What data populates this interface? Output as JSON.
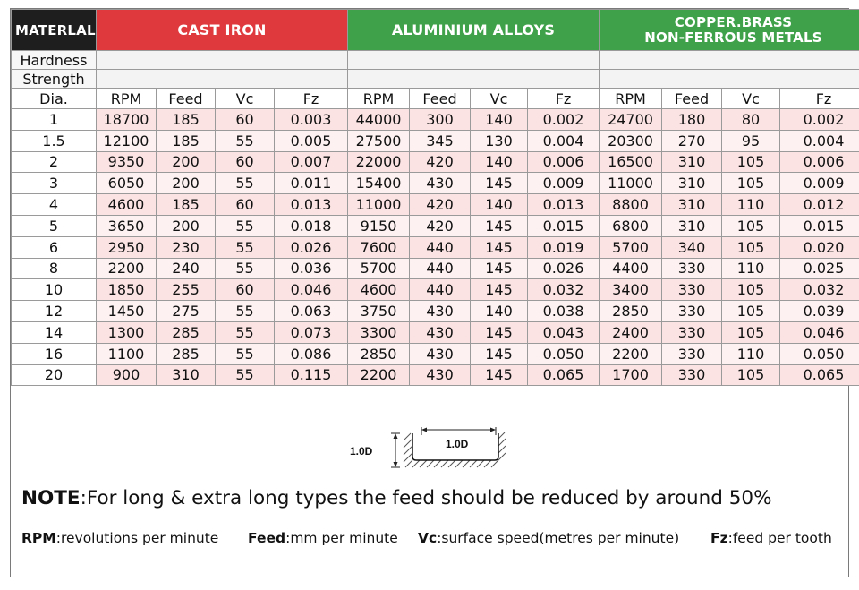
{
  "header": {
    "material_label": "MATERLAL",
    "groups": [
      {
        "lines": [
          "CAST IRON"
        ]
      },
      {
        "lines": [
          "ALUMINIUM ALLOYS"
        ]
      },
      {
        "lines": [
          "COPPER.BRASS",
          "NON-FERROUS METALS"
        ]
      }
    ]
  },
  "properties": {
    "hardness_label": "Hardness",
    "strength_label": "Strength"
  },
  "columns": {
    "dia": "Dia.",
    "rpm": "RPM",
    "feed": "Feed",
    "vc": "Vc",
    "fz": "Fz"
  },
  "rows": [
    {
      "dia": "1",
      "g": [
        [
          "18700",
          "185",
          "60",
          "0.003"
        ],
        [
          "44000",
          "300",
          "140",
          "0.002"
        ],
        [
          "24700",
          "180",
          "80",
          "0.002"
        ]
      ]
    },
    {
      "dia": "1.5",
      "g": [
        [
          "12100",
          "185",
          "55",
          "0.005"
        ],
        [
          "27500",
          "345",
          "130",
          "0.004"
        ],
        [
          "20300",
          "270",
          "95",
          "0.004"
        ]
      ]
    },
    {
      "dia": "2",
      "g": [
        [
          "9350",
          "200",
          "60",
          "0.007"
        ],
        [
          "22000",
          "420",
          "140",
          "0.006"
        ],
        [
          "16500",
          "310",
          "105",
          "0.006"
        ]
      ]
    },
    {
      "dia": "3",
      "g": [
        [
          "6050",
          "200",
          "55",
          "0.011"
        ],
        [
          "15400",
          "430",
          "145",
          "0.009"
        ],
        [
          "11000",
          "310",
          "105",
          "0.009"
        ]
      ]
    },
    {
      "dia": "4",
      "g": [
        [
          "4600",
          "185",
          "60",
          "0.013"
        ],
        [
          "11000",
          "420",
          "140",
          "0.013"
        ],
        [
          "8800",
          "310",
          "110",
          "0.012"
        ]
      ]
    },
    {
      "dia": "5",
      "g": [
        [
          "3650",
          "200",
          "55",
          "0.018"
        ],
        [
          "9150",
          "420",
          "145",
          "0.015"
        ],
        [
          "6800",
          "310",
          "105",
          "0.015"
        ]
      ]
    },
    {
      "dia": "6",
      "g": [
        [
          "2950",
          "230",
          "55",
          "0.026"
        ],
        [
          "7600",
          "440",
          "145",
          "0.019"
        ],
        [
          "5700",
          "340",
          "105",
          "0.020"
        ]
      ]
    },
    {
      "dia": "8",
      "g": [
        [
          "2200",
          "240",
          "55",
          "0.036"
        ],
        [
          "5700",
          "440",
          "145",
          "0.026"
        ],
        [
          "4400",
          "330",
          "110",
          "0.025"
        ]
      ]
    },
    {
      "dia": "10",
      "g": [
        [
          "1850",
          "255",
          "60",
          "0.046"
        ],
        [
          "4600",
          "440",
          "145",
          "0.032"
        ],
        [
          "3400",
          "330",
          "105",
          "0.032"
        ]
      ]
    },
    {
      "dia": "12",
      "g": [
        [
          "1450",
          "275",
          "55",
          "0.063"
        ],
        [
          "3750",
          "430",
          "140",
          "0.038"
        ],
        [
          "2850",
          "330",
          "105",
          "0.039"
        ]
      ]
    },
    {
      "dia": "14",
      "g": [
        [
          "1300",
          "285",
          "55",
          "0.073"
        ],
        [
          "3300",
          "430",
          "145",
          "0.043"
        ],
        [
          "2400",
          "330",
          "105",
          "0.046"
        ]
      ]
    },
    {
      "dia": "16",
      "g": [
        [
          "1100",
          "285",
          "55",
          "0.086"
        ],
        [
          "2850",
          "430",
          "145",
          "0.050"
        ],
        [
          "2200",
          "330",
          "110",
          "0.050"
        ]
      ]
    },
    {
      "dia": "20",
      "g": [
        [
          "900",
          "310",
          "55",
          "0.115"
        ],
        [
          "2200",
          "430",
          "145",
          "0.065"
        ],
        [
          "1700",
          "330",
          "105",
          "0.065"
        ]
      ]
    }
  ],
  "diagram": {
    "depth_label": "1.0D",
    "width_label": "1.0D"
  },
  "note": {
    "prefix": "NOTE",
    "text": ":For long & extra long types the feed should be reduced by around 50%"
  },
  "legend": [
    {
      "key": "RPM",
      "desc": ":revolutions per minute"
    },
    {
      "key": "Feed",
      "desc": ":mm per minute"
    },
    {
      "key": "Vc",
      "desc": ":surface speed(metres per minute)"
    },
    {
      "key": "Fz",
      "desc": ":feed per tooth"
    }
  ],
  "colors": {
    "cast_iron": "#e0393d",
    "aluminium": "#3fa24a",
    "copper": "#3fa24a",
    "material_header": "#1e1e1e",
    "row_odd": "#fbe3e3",
    "row_even": "#fdf1f1"
  }
}
